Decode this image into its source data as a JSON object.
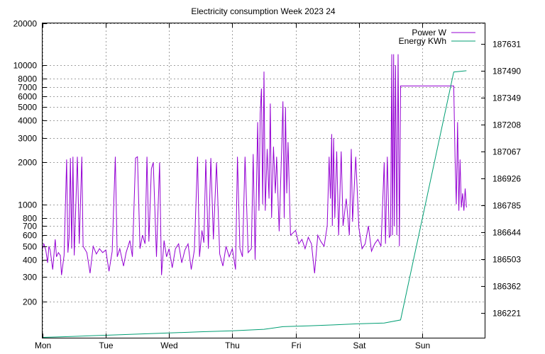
{
  "chart_data": {
    "type": "line",
    "title": "Electricity consumption Week 2023 24",
    "grid": true,
    "legend_position": "top-right",
    "x_categories": [
      "Mon",
      "Tue",
      "Wed",
      "Thu",
      "Fri",
      "Sat",
      "Sun"
    ],
    "xlim": [
      0,
      7
    ],
    "y_left": {
      "scale": "log",
      "lim": [
        110,
        20000
      ],
      "ticks": [
        200,
        300,
        400,
        500,
        600,
        700,
        800,
        1000,
        2000,
        3000,
        4000,
        5000,
        6000,
        7000,
        8000,
        10000,
        20000
      ]
    },
    "y_right": {
      "scale": "linear",
      "lim": [
        186093,
        187740
      ],
      "ticks": [
        186221,
        186362,
        186503,
        186644,
        186785,
        186926,
        187067,
        187208,
        187349,
        187490,
        187631
      ]
    },
    "series": [
      {
        "name": "Power W",
        "color": "#9400d3",
        "axis": "left",
        "data": [
          [
            0.0,
            480
          ],
          [
            0.02,
            520
          ],
          [
            0.05,
            470
          ],
          [
            0.08,
            380
          ],
          [
            0.1,
            500
          ],
          [
            0.12,
            470
          ],
          [
            0.16,
            340
          ],
          [
            0.2,
            560
          ],
          [
            0.22,
            420
          ],
          [
            0.25,
            450
          ],
          [
            0.28,
            430
          ],
          [
            0.3,
            310
          ],
          [
            0.34,
            430
          ],
          [
            0.38,
            2100
          ],
          [
            0.4,
            450
          ],
          [
            0.42,
            580
          ],
          [
            0.44,
            2150
          ],
          [
            0.46,
            480
          ],
          [
            0.48,
            2200
          ],
          [
            0.5,
            430
          ],
          [
            0.55,
            2200
          ],
          [
            0.58,
            520
          ],
          [
            0.62,
            2200
          ],
          [
            0.64,
            500
          ],
          [
            0.7,
            450
          ],
          [
            0.75,
            320
          ],
          [
            0.8,
            500
          ],
          [
            0.85,
            440
          ],
          [
            0.9,
            480
          ],
          [
            0.95,
            450
          ],
          [
            1.0,
            470
          ],
          [
            1.05,
            330
          ],
          [
            1.1,
            460
          ],
          [
            1.15,
            2200
          ],
          [
            1.18,
            420
          ],
          [
            1.22,
            480
          ],
          [
            1.28,
            360
          ],
          [
            1.32,
            450
          ],
          [
            1.38,
            550
          ],
          [
            1.42,
            420
          ],
          [
            1.47,
            2150
          ],
          [
            1.5,
            2200
          ],
          [
            1.54,
            480
          ],
          [
            1.58,
            600
          ],
          [
            1.62,
            520
          ],
          [
            1.65,
            2200
          ],
          [
            1.68,
            540
          ],
          [
            1.72,
            1800
          ],
          [
            1.75,
            2000
          ],
          [
            1.8,
            420
          ],
          [
            1.85,
            2000
          ],
          [
            1.88,
            310
          ],
          [
            1.92,
            550
          ],
          [
            1.96,
            420
          ],
          [
            2.0,
            480
          ],
          [
            2.05,
            350
          ],
          [
            2.1,
            480
          ],
          [
            2.15,
            520
          ],
          [
            2.2,
            380
          ],
          [
            2.25,
            470
          ],
          [
            2.3,
            520
          ],
          [
            2.35,
            340
          ],
          [
            2.4,
            470
          ],
          [
            2.45,
            2200
          ],
          [
            2.48,
            420
          ],
          [
            2.52,
            650
          ],
          [
            2.55,
            530
          ],
          [
            2.58,
            2100
          ],
          [
            2.62,
            480
          ],
          [
            2.66,
            2150
          ],
          [
            2.7,
            560
          ],
          [
            2.75,
            2000
          ],
          [
            2.8,
            440
          ],
          [
            2.85,
            360
          ],
          [
            2.9,
            500
          ],
          [
            2.95,
            420
          ],
          [
            3.0,
            480
          ],
          [
            3.05,
            340
          ],
          [
            3.08,
            2200
          ],
          [
            3.12,
            480
          ],
          [
            3.16,
            420
          ],
          [
            3.2,
            2200
          ],
          [
            3.25,
            450
          ],
          [
            3.3,
            480
          ],
          [
            3.33,
            2300
          ],
          [
            3.36,
            400
          ],
          [
            3.4,
            3900
          ],
          [
            3.42,
            900
          ],
          [
            3.44,
            4500
          ],
          [
            3.46,
            6800
          ],
          [
            3.48,
            1000
          ],
          [
            3.5,
            9000
          ],
          [
            3.52,
            900
          ],
          [
            3.55,
            2500
          ],
          [
            3.58,
            1100
          ],
          [
            3.6,
            5300
          ],
          [
            3.62,
            800
          ],
          [
            3.65,
            2600
          ],
          [
            3.68,
            1200
          ],
          [
            3.7,
            2200
          ],
          [
            3.74,
            640
          ],
          [
            3.78,
            2600
          ],
          [
            3.8,
            5500
          ],
          [
            3.82,
            800
          ],
          [
            3.84,
            5000
          ],
          [
            3.86,
            1200
          ],
          [
            3.88,
            2800
          ],
          [
            3.92,
            600
          ],
          [
            4.0,
            650
          ],
          [
            4.05,
            520
          ],
          [
            4.1,
            560
          ],
          [
            4.15,
            480
          ],
          [
            4.2,
            580
          ],
          [
            4.25,
            520
          ],
          [
            4.3,
            320
          ],
          [
            4.35,
            600
          ],
          [
            4.4,
            540
          ],
          [
            4.45,
            500
          ],
          [
            4.5,
            700
          ],
          [
            4.53,
            2200
          ],
          [
            4.55,
            1100
          ],
          [
            4.57,
            3200
          ],
          [
            4.58,
            700
          ],
          [
            4.6,
            3000
          ],
          [
            4.62,
            800
          ],
          [
            4.65,
            2400
          ],
          [
            4.68,
            600
          ],
          [
            4.72,
            2400
          ],
          [
            4.75,
            700
          ],
          [
            4.8,
            1100
          ],
          [
            4.85,
            600
          ],
          [
            4.88,
            2500
          ],
          [
            4.9,
            750
          ],
          [
            4.95,
            2200
          ],
          [
            5.0,
            680
          ],
          [
            5.05,
            480
          ],
          [
            5.1,
            520
          ],
          [
            5.15,
            700
          ],
          [
            5.2,
            460
          ],
          [
            5.25,
            520
          ],
          [
            5.3,
            560
          ],
          [
            5.35,
            500
          ],
          [
            5.4,
            2000
          ],
          [
            5.42,
            520
          ],
          [
            5.45,
            2200
          ],
          [
            5.48,
            580
          ],
          [
            5.5,
            600
          ],
          [
            5.52,
            12000
          ],
          [
            5.53,
            600
          ],
          [
            5.55,
            12000
          ],
          [
            5.56,
            700
          ],
          [
            5.58,
            10000
          ],
          [
            5.6,
            600
          ],
          [
            5.62,
            12000
          ],
          [
            5.64,
            500
          ],
          [
            5.66,
            7100
          ],
          [
            6.5,
            7100
          ],
          [
            6.52,
            2200
          ],
          [
            6.54,
            1000
          ],
          [
            6.56,
            3900
          ],
          [
            6.58,
            900
          ],
          [
            6.6,
            2100
          ],
          [
            6.62,
            950
          ],
          [
            6.64,
            1200
          ],
          [
            6.66,
            900
          ],
          [
            6.68,
            1300
          ],
          [
            6.7,
            950
          ]
        ]
      },
      {
        "name": "Energy KWh",
        "color": "#009e73",
        "axis": "right",
        "data": [
          [
            0.0,
            186095
          ],
          [
            0.5,
            186100
          ],
          [
            1.0,
            186106
          ],
          [
            1.5,
            186112
          ],
          [
            2.0,
            186118
          ],
          [
            2.5,
            186124
          ],
          [
            3.0,
            186129
          ],
          [
            3.5,
            186137
          ],
          [
            3.8,
            186151
          ],
          [
            4.2,
            186155
          ],
          [
            4.6,
            186160
          ],
          [
            5.0,
            186166
          ],
          [
            5.4,
            186170
          ],
          [
            5.66,
            186186
          ],
          [
            6.5,
            187485
          ],
          [
            6.7,
            187492
          ]
        ]
      }
    ]
  }
}
